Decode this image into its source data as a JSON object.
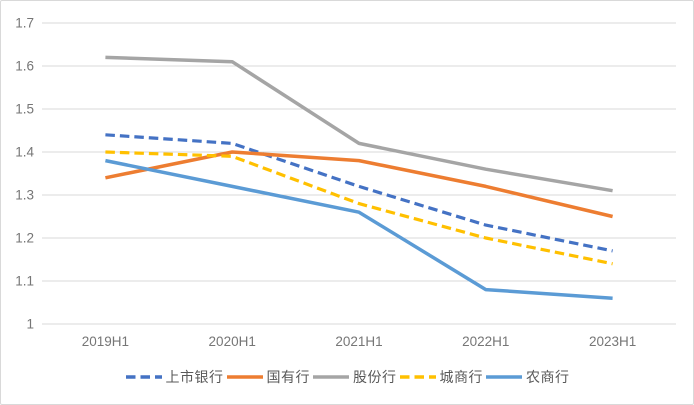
{
  "chart": {
    "background": "#ffffff",
    "border_color": "#d9d9d9",
    "gridline_color": "#d9d9d9",
    "axis_line_color": "#d9d9d9",
    "tick_label_color": "#767676",
    "legend_text_color": "#595959"
  },
  "chart_data": {
    "type": "line",
    "title": "",
    "categories": [
      "2019H1",
      "2020H1",
      "2021H1",
      "2022H1",
      "2023H1"
    ],
    "series": [
      {
        "name": "上市银行",
        "color": "#4472C4",
        "dashed": true,
        "values": [
          1.44,
          1.42,
          1.32,
          1.23,
          1.17
        ]
      },
      {
        "name": "国有行",
        "color": "#ED7D31",
        "dashed": false,
        "values": [
          1.34,
          1.4,
          1.38,
          1.32,
          1.25
        ]
      },
      {
        "name": "股份行",
        "color": "#A5A5A5",
        "dashed": false,
        "values": [
          1.62,
          1.61,
          1.42,
          1.36,
          1.31
        ]
      },
      {
        "name": "城商行",
        "color": "#FFC000",
        "dashed": true,
        "values": [
          1.4,
          1.39,
          1.28,
          1.2,
          1.14
        ]
      },
      {
        "name": "农商行",
        "color": "#5B9BD5",
        "dashed": false,
        "values": [
          1.38,
          1.32,
          1.26,
          1.08,
          1.06
        ]
      }
    ],
    "y_ticks": [
      "1.7",
      "1.6",
      "1.5",
      "1.4",
      "1.3",
      "1.2",
      "1.1",
      "1"
    ],
    "y_tick_values": [
      1.7,
      1.6,
      1.5,
      1.4,
      1.3,
      1.2,
      1.1,
      1.0
    ],
    "ylim": [
      1.0,
      1.7
    ],
    "xlabel": "",
    "ylabel": "",
    "grid": true,
    "legend_position": "bottom"
  }
}
